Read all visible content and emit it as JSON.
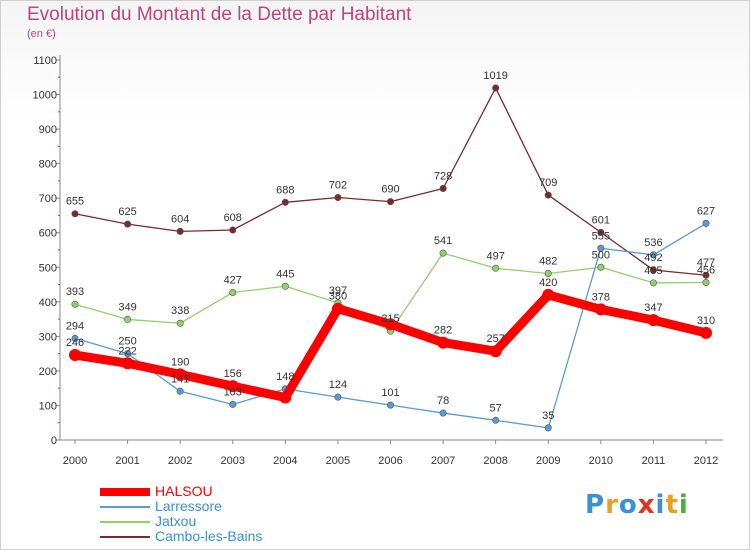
{
  "header": {
    "title": "Evolution du Montant de la Dette par Habitant",
    "subtitle": "(en €)"
  },
  "logo": {
    "text": "Proxiti",
    "colors": [
      "#3a8fd6",
      "#e8a020",
      "#3a8fd6",
      "#e83020",
      "#3a8fd6",
      "#e8a020",
      "#48b040"
    ]
  },
  "chart_data": {
    "type": "line",
    "title": "Evolution du Montant de la Dette par Habitant",
    "subtitle": "(en €)",
    "x": [
      "2000",
      "2001",
      "2002",
      "2003",
      "2004",
      "2005",
      "2006",
      "2007",
      "2008",
      "2009",
      "2010",
      "2011",
      "2012"
    ],
    "ylim": [
      0,
      1100
    ],
    "yticks": [
      0,
      100,
      200,
      300,
      400,
      500,
      600,
      700,
      800,
      900,
      1000,
      1100
    ],
    "grid": false,
    "legend_position": "bottom-left",
    "series": [
      {
        "name": "HALSOU",
        "color": "#ff0000",
        "values": [
          246,
          222,
          190,
          156,
          123,
          380,
          335,
          282,
          257,
          420,
          378,
          347,
          310
        ],
        "labels": [
          "246",
          "222",
          "190",
          "156",
          "",
          "380",
          "",
          "282",
          "257",
          "420",
          "378",
          "347",
          "310"
        ]
      },
      {
        "name": "Larressore",
        "color": "#5b9bd5",
        "values": [
          294,
          250,
          141,
          103,
          148,
          124,
          101,
          78,
          57,
          35,
          555,
          536,
          627
        ],
        "labels": [
          "294",
          "250",
          "141",
          "103",
          "148",
          "124",
          "101",
          "78",
          "57",
          "35",
          "555",
          "536",
          "627"
        ]
      },
      {
        "name": "Jatxou",
        "color": "#8fd16a",
        "values": [
          393,
          349,
          338,
          427,
          445,
          397,
          315,
          541,
          497,
          482,
          500,
          455,
          456
        ],
        "labels": [
          "393",
          "349",
          "338",
          "427",
          "445",
          "397",
          "315",
          "541",
          "497",
          "482",
          "500",
          "455",
          "456"
        ]
      },
      {
        "name": "Cambo-les-Bains",
        "color": "#7b2a2a",
        "values": [
          655,
          625,
          604,
          608,
          688,
          702,
          690,
          728,
          1019,
          709,
          601,
          492,
          477
        ],
        "labels": [
          "655",
          "625",
          "604",
          "608",
          "688",
          "702",
          "690",
          "728",
          "1019",
          "709",
          "601",
          "492",
          "477"
        ]
      }
    ]
  }
}
